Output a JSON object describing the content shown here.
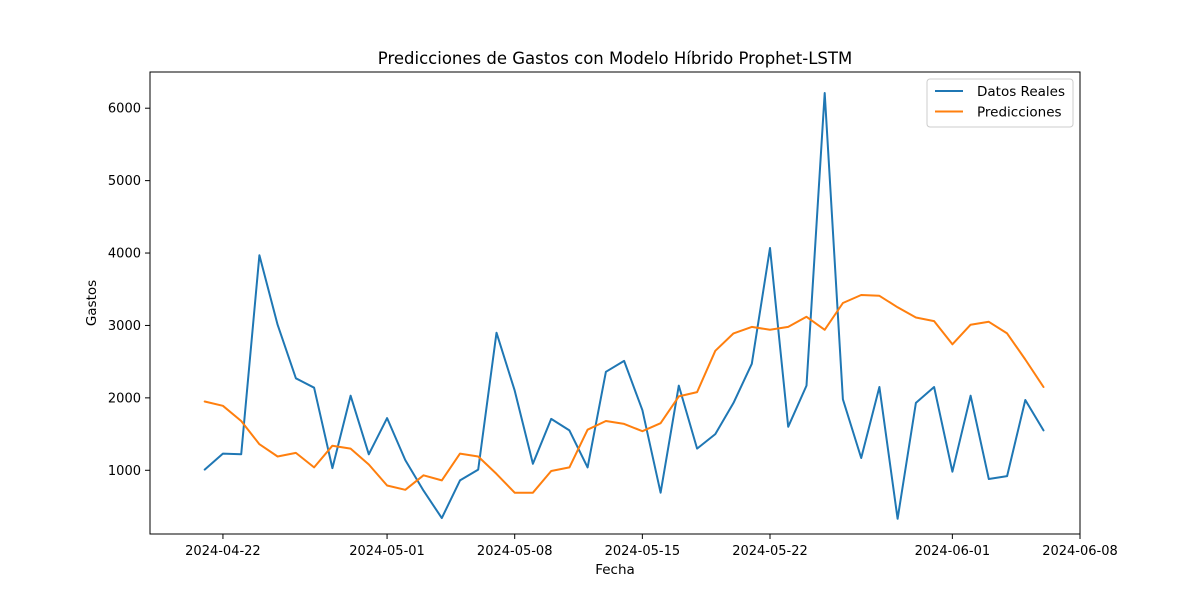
{
  "chart_data": {
    "type": "line",
    "title": "Predicciones de Gastos con Modelo Híbrido Prophet-LSTM",
    "xlabel": "Fecha",
    "ylabel": "Gastos",
    "x_start": "2024-04-21",
    "xlim": [
      "2024-04-18",
      "2024-06-08"
    ],
    "ylim": [
      120,
      6500
    ],
    "x_ticks": [
      "2024-04-22",
      "2024-05-01",
      "2024-05-08",
      "2024-05-15",
      "2024-05-22",
      "2024-06-01",
      "2024-06-08"
    ],
    "y_ticks": [
      1000,
      2000,
      3000,
      4000,
      5000,
      6000
    ],
    "grid": false,
    "legend_position": "top-right",
    "series": [
      {
        "name": "Datos Reales",
        "color": "#1f77b4",
        "values": [
          1010,
          1230,
          1220,
          3970,
          3010,
          2270,
          2140,
          1030,
          2030,
          1220,
          1720,
          1140,
          720,
          340,
          860,
          1010,
          2900,
          2100,
          1090,
          1710,
          1550,
          1040,
          2360,
          2510,
          1830,
          690,
          2170,
          1300,
          1500,
          1930,
          2470,
          4070,
          1600,
          2170,
          6210,
          1980,
          1170,
          2150,
          330,
          1930,
          2150,
          980,
          2030,
          880,
          920,
          1970,
          1550
        ]
      },
      {
        "name": "Predicciones",
        "color": "#ff7f0e",
        "values": [
          1950,
          1890,
          1680,
          1360,
          1190,
          1240,
          1040,
          1340,
          1300,
          1080,
          790,
          730,
          930,
          860,
          1230,
          1190,
          950,
          690,
          690,
          990,
          1040,
          1560,
          1680,
          1640,
          1540,
          1650,
          2020,
          2080,
          2650,
          2890,
          2980,
          2940,
          2980,
          3120,
          2940,
          3310,
          3420,
          3410,
          3250,
          3110,
          3060,
          2740,
          3010,
          3050,
          2890,
          2530,
          2150
        ]
      }
    ]
  }
}
